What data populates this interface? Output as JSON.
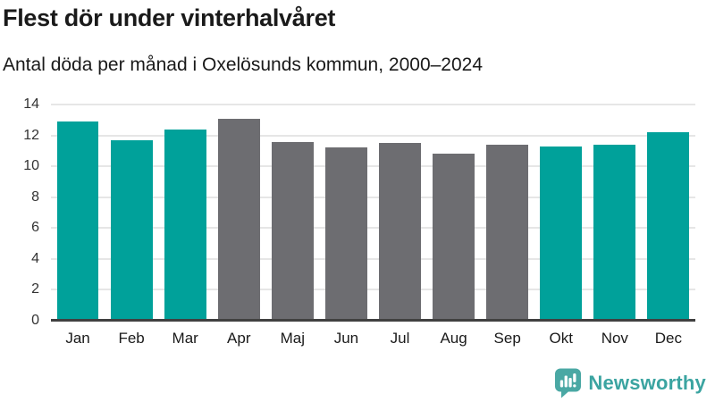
{
  "header": {
    "title": "Flest dör under vinterhalvåret",
    "subtitle": "Antal döda per månad i Oxelösunds kommun, 2000–2024"
  },
  "chart_data": {
    "type": "bar",
    "title": "Flest dör under vinterhalvåret",
    "subtitle": "Antal döda per månad i Oxelösunds kommun, 2000–2024",
    "categories": [
      "Jan",
      "Feb",
      "Mar",
      "Apr",
      "Maj",
      "Jun",
      "Jul",
      "Aug",
      "Sep",
      "Okt",
      "Nov",
      "Dec"
    ],
    "values": [
      12.9,
      11.7,
      12.4,
      13.1,
      11.6,
      11.2,
      11.5,
      10.8,
      11.4,
      11.3,
      11.4,
      12.2
    ],
    "highlighted": [
      true,
      true,
      true,
      false,
      false,
      false,
      false,
      false,
      false,
      true,
      true,
      true
    ],
    "xlabel": "",
    "ylabel": "",
    "ylim": [
      0,
      14
    ],
    "yticks": [
      0,
      2,
      4,
      6,
      8,
      10,
      12,
      14
    ],
    "grid": true,
    "legend": false,
    "colors": {
      "highlight": "#00a19a",
      "base": "#6d6d71",
      "gridline": "#e6e6e6",
      "axis_line": "#404040",
      "tick_text": "#333333"
    }
  },
  "footer": {
    "brand": "Newsworthy",
    "logo_icon": "bar-chart-speech-bubble-icon",
    "brand_color": "#3ba4a1",
    "icon_color": "#4aa8a4"
  }
}
